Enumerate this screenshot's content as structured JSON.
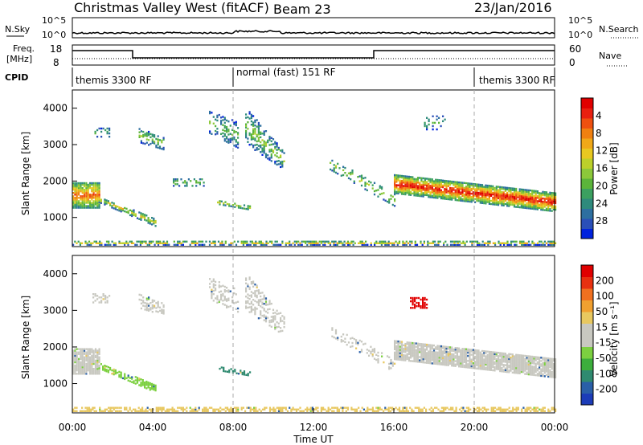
{
  "header": {
    "station": "Christmas Valley West (fitACF)",
    "beam": "Beam 23",
    "date": "23/Jan/2016"
  },
  "summary": {
    "nsky_label": "N.Sky",
    "nsky_ticks": [
      "10^5",
      "10^0"
    ],
    "nsearch_label": "N.Search",
    "nsearch_ticks": [
      "10^5",
      "10^0"
    ],
    "freq_label_1": "Freq.",
    "freq_label_2": "[MHz]",
    "freq_ticks": [
      "18",
      "8"
    ],
    "nave_label": "Nave",
    "nave_ticks": [
      "60",
      "0"
    ],
    "cpid_label": "CPID",
    "cpid_segments": [
      {
        "label": "themis 3300 RF",
        "start_hour": 0,
        "end_hour": 8
      },
      {
        "label": "normal (fast) 151 RF",
        "start_hour": 8,
        "end_hour": 20
      },
      {
        "label": "themis 3300 RF",
        "start_hour": 20,
        "end_hour": 24
      }
    ]
  },
  "chart_data": [
    {
      "type": "heatmap",
      "name": "power",
      "ylabel": "Slant Range [km]",
      "xlabel": "Time UT",
      "x_ticks": [
        "00:00",
        "04:00",
        "08:00",
        "12:00",
        "16:00",
        "20:00",
        "00:00"
      ],
      "xlim_hours": [
        0,
        24
      ],
      "y_ticks": [
        1000,
        2000,
        3000,
        4000
      ],
      "ylim": [
        200,
        4500
      ],
      "colorbar_label": "Power [dB]",
      "colorbar_ticks": [
        "4",
        "8",
        "12",
        "16",
        "20",
        "24",
        "28"
      ],
      "colorbar_colors": [
        "#0022dd",
        "#2a4fb8",
        "#2d6fa0",
        "#2e8a7c",
        "#3ca060",
        "#5bb43a",
        "#8cc83a",
        "#bcd02a",
        "#e8c820",
        "#f0a818",
        "#f08010",
        "#ee5010",
        "#e82010",
        "#e00000"
      ]
    },
    {
      "type": "heatmap",
      "name": "velocity",
      "ylabel": "Slant Range [km]",
      "xlabel": "Time UT",
      "x_ticks": [
        "00:00",
        "04:00",
        "08:00",
        "12:00",
        "16:00",
        "20:00",
        "00:00"
      ],
      "xlim_hours": [
        0,
        24
      ],
      "y_ticks": [
        1000,
        2000,
        3000,
        4000
      ],
      "ylim": [
        200,
        4500
      ],
      "colorbar_label": "Velocity [m s⁻¹]",
      "colorbar_ticks": [
        "200",
        "100",
        "50",
        "15",
        "-15",
        "-50",
        "-100",
        "-200"
      ],
      "colorbar_colors": [
        "#1c3cb8",
        "#2a5fa8",
        "#2f8a70",
        "#3cae3c",
        "#7cd040",
        "#c8c8c0",
        "#c8c8c0",
        "#e8c860",
        "#f0a030",
        "#f07020",
        "#e83010",
        "#e00000"
      ]
    }
  ]
}
